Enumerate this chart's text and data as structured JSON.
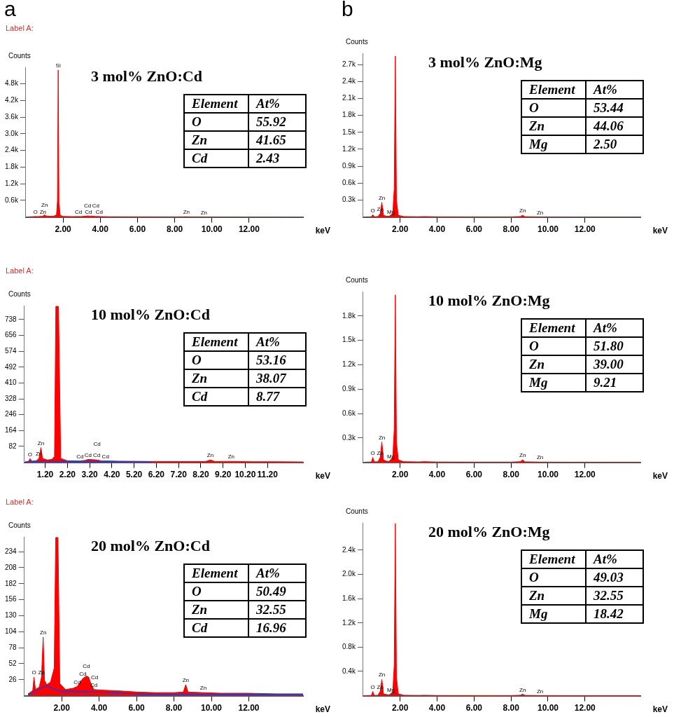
{
  "chart_data": [
    {
      "type": "area",
      "title": "3 mol% ZnO:Cd",
      "subtitle": "Label A:",
      "xlabel": "keV",
      "ylabel": "Counts",
      "xlim": [
        0,
        14.9
      ],
      "ylim": [
        0,
        5400
      ],
      "xticks": [
        {
          "value": 2,
          "label": "2.00"
        },
        {
          "value": 4,
          "label": "4.00"
        },
        {
          "value": 6,
          "label": "6.00"
        },
        {
          "value": 8,
          "label": "8.00"
        },
        {
          "value": 10,
          "label": "10.00"
        },
        {
          "value": 12,
          "label": "12.00"
        }
      ],
      "yticks": [
        {
          "value": 600,
          "label": "0.6k"
        },
        {
          "value": 1200,
          "label": "1.2k"
        },
        {
          "value": 1800,
          "label": "1.8k"
        },
        {
          "value": 2400,
          "label": "2.4k"
        },
        {
          "value": 3000,
          "label": "3.0k"
        },
        {
          "value": 3600,
          "label": "3.6k"
        },
        {
          "value": 4200,
          "label": "4.2k"
        },
        {
          "value": 4800,
          "label": "4.8k"
        }
      ],
      "series": [
        {
          "color": "#ff0000",
          "x": [
            0.1,
            0.3,
            0.45,
            0.52,
            0.6,
            0.8,
            0.92,
            1.01,
            1.08,
            1.3,
            1.5,
            1.65,
            1.7,
            1.74,
            1.78,
            1.85,
            2.0,
            2.5,
            2.83,
            3.0,
            3.13,
            3.2,
            3.32,
            3.45,
            3.53,
            3.72,
            4.5,
            6,
            8,
            8.5,
            8.63,
            8.75,
            9.57,
            10.5,
            12,
            13.5,
            14.9
          ],
          "values": [
            5,
            10,
            15,
            20,
            15,
            20,
            30,
            80,
            40,
            25,
            30,
            80,
            600,
            5300,
            500,
            60,
            20,
            15,
            18,
            15,
            30,
            25,
            40,
            30,
            35,
            20,
            10,
            8,
            6,
            8,
            10,
            6,
            5,
            4,
            3,
            3,
            2
          ]
        }
      ],
      "annotations": [
        "a",
        "Element",
        "At%",
        "O",
        "55.92",
        "Zn",
        "41.65",
        "Cd",
        "2.43",
        {
          "text": "O",
          "x": 0.52,
          "y": 20
        },
        {
          "text": "Zn",
          "x": 0.92,
          "y": 30
        },
        {
          "text": "Zn",
          "x": 1.01,
          "y": 80
        },
        {
          "text": "Si",
          "x": 1.74,
          "y": 5300
        },
        {
          "text": "Cd",
          "x": 2.83,
          "y": 18
        },
        {
          "text": "Cd",
          "x": 3.13,
          "y": 30
        },
        {
          "text": "Cd",
          "x": 3.32,
          "y": 40
        },
        {
          "text": "Cd",
          "x": 3.53,
          "y": 35
        },
        {
          "text": "Cd",
          "x": 3.72,
          "y": 20
        },
        {
          "text": "Zn",
          "x": 8.63,
          "y": 10
        },
        {
          "text": "Zn",
          "x": 9.57,
          "y": 5
        }
      ]
    },
    {
      "type": "area",
      "title": "3 mol% ZnO:Mg",
      "xlabel": "keV",
      "ylabel": "Counts",
      "xlim": [
        0,
        15
      ],
      "ylim": [
        0,
        2900
      ],
      "xticks": [
        {
          "value": 2,
          "label": "2.00"
        },
        {
          "value": 4,
          "label": "4.00"
        },
        {
          "value": 6,
          "label": "6.00"
        },
        {
          "value": 8,
          "label": "8.00"
        },
        {
          "value": 10,
          "label": "10.00"
        },
        {
          "value": 12,
          "label": "12.00"
        }
      ],
      "yticks": [
        {
          "value": 300,
          "label": "0.3k"
        },
        {
          "value": 600,
          "label": "0.6k"
        },
        {
          "value": 900,
          "label": "0.9k"
        },
        {
          "value": 1200,
          "label": "1.2k"
        },
        {
          "value": 1500,
          "label": "1.5k"
        },
        {
          "value": 1800,
          "label": "1.8k"
        },
        {
          "value": 2100,
          "label": "2.1k"
        },
        {
          "value": 2400,
          "label": "2.4k"
        },
        {
          "value": 2700,
          "label": "2.7k"
        }
      ],
      "series": [
        {
          "color": "#ff0000",
          "x": [
            0.1,
            0.3,
            0.45,
            0.52,
            0.6,
            0.8,
            0.92,
            1.01,
            1.1,
            1.25,
            1.4,
            1.6,
            1.68,
            1.74,
            1.8,
            1.9,
            2.2,
            3,
            3.3,
            4,
            6,
            8,
            8.5,
            8.63,
            8.75,
            9.57,
            11,
            13,
            15
          ],
          "values": [
            2,
            3,
            5,
            40,
            5,
            8,
            60,
            260,
            30,
            15,
            12,
            60,
            500,
            2850,
            300,
            30,
            8,
            5,
            8,
            4,
            3,
            3,
            8,
            30,
            6,
            3,
            2,
            2,
            2
          ]
        }
      ],
      "annotations": [
        "b",
        "Element",
        "At%",
        "O",
        "53.44",
        "Zn",
        "44.06",
        "Mg",
        "2.50",
        {
          "text": "O",
          "x": 0.52,
          "y": 40
        },
        {
          "text": "Zn",
          "x": 0.92,
          "y": 60
        },
        {
          "text": "Zn",
          "x": 1.01,
          "y": 260
        },
        {
          "text": "Mg",
          "x": 1.25,
          "y": 15
        },
        {
          "text": "Zn",
          "x": 8.63,
          "y": 30
        },
        {
          "text": "Zn",
          "x": 9.57,
          "y": 3
        }
      ]
    },
    {
      "type": "area",
      "title": "10 mol% ZnO:Cd",
      "subtitle": "Label A:",
      "xlabel": "keV",
      "ylabel": "Counts",
      "xlim": [
        0.26,
        12.8
      ],
      "ylim": [
        0,
        810
      ],
      "xticks": [
        {
          "value": 1.2,
          "label": "1.20"
        },
        {
          "value": 2.2,
          "label": "2.20"
        },
        {
          "value": 3.2,
          "label": "3.20"
        },
        {
          "value": 4.2,
          "label": "4.20"
        },
        {
          "value": 5.2,
          "label": "5.20"
        },
        {
          "value": 6.2,
          "label": "6.20"
        },
        {
          "value": 7.2,
          "label": "7.20"
        },
        {
          "value": 8.2,
          "label": "8.20"
        },
        {
          "value": 9.2,
          "label": "9.20"
        },
        {
          "value": 10.2,
          "label": "10.20"
        },
        {
          "value": 11.2,
          "label": "11.20"
        }
      ],
      "yticks": [
        82,
        164,
        246,
        328,
        410,
        492,
        574,
        656,
        738
      ],
      "series": [
        {
          "color": "#ff0000",
          "x": [
            0.3,
            0.45,
            0.52,
            0.6,
            0.8,
            0.92,
            1.01,
            1.08,
            1.3,
            1.5,
            1.62,
            1.68,
            1.74,
            1.8,
            1.9,
            2.2,
            2.77,
            3.0,
            3.13,
            3.32,
            3.53,
            3.72,
            4.5,
            5.5,
            6.5,
            7.5,
            8.4,
            8.63,
            8.85,
            9.57,
            10.5,
            11.5,
            12.8
          ],
          "values": [
            2,
            5,
            19,
            6,
            8,
            20,
            76,
            20,
            12,
            15,
            30,
            806,
            806,
            806,
            20,
            8,
            7,
            10,
            15,
            14,
            12,
            8,
            6,
            5,
            4,
            4,
            4,
            12,
            4,
            5,
            3,
            3,
            2
          ]
        },
        {
          "type": "line",
          "color": "#3333cc",
          "x": [
            0.3,
            0.8,
            1.2,
            1.8,
            2.5,
            4,
            6
          ],
          "values": [
            1,
            5,
            7,
            5,
            4,
            3,
            2
          ]
        }
      ],
      "annotations": [
        "Element",
        "At%",
        "O",
        "53.16",
        "Zn",
        "38.07",
        "Cd",
        "8.77",
        {
          "text": "O",
          "x": 0.52,
          "y": 19
        },
        {
          "text": "Zn",
          "x": 0.92,
          "y": 20
        },
        {
          "text": "Zn",
          "x": 1.01,
          "y": 76
        },
        {
          "text": "Cd",
          "x": 2.77,
          "y": 7
        },
        {
          "text": "Cd",
          "x": 3.13,
          "y": 15
        },
        {
          "text": "Cd",
          "x": 3.32,
          "y": 14
        },
        {
          "text": "Cd",
          "x": 3.53,
          "y": 12
        },
        {
          "text": "Cd",
          "x": 3.72,
          "y": 8
        },
        {
          "text": "Zn",
          "x": 8.63,
          "y": 12
        },
        {
          "text": "Zn",
          "x": 9.57,
          "y": 5
        }
      ]
    },
    {
      "type": "area",
      "title": "10 mol% ZnO:Mg",
      "xlabel": "keV",
      "ylabel": "Counts",
      "xlim": [
        0,
        15
      ],
      "ylim": [
        0,
        2100
      ],
      "xticks": [
        {
          "value": 2,
          "label": "2.00"
        },
        {
          "value": 4,
          "label": "4.00"
        },
        {
          "value": 6,
          "label": "6.00"
        },
        {
          "value": 8,
          "label": "8.00"
        },
        {
          "value": 10,
          "label": "10.00"
        },
        {
          "value": 12,
          "label": "12.00"
        }
      ],
      "yticks": [
        {
          "value": 300,
          "label": "0.3k"
        },
        {
          "value": 600,
          "label": "0.6k"
        },
        {
          "value": 900,
          "label": "0.9k"
        },
        {
          "value": 1200,
          "label": "1.2k"
        },
        {
          "value": 1500,
          "label": "1.5k"
        },
        {
          "value": 1800,
          "label": "1.8k"
        }
      ],
      "series": [
        {
          "color": "#ff0000",
          "x": [
            0.1,
            0.3,
            0.45,
            0.52,
            0.6,
            0.8,
            0.92,
            1.01,
            1.1,
            1.25,
            1.4,
            1.6,
            1.68,
            1.74,
            1.8,
            1.9,
            2.2,
            3,
            3.3,
            4,
            6,
            8,
            8.5,
            8.63,
            8.75,
            9.57,
            11,
            13,
            15
          ],
          "values": [
            2,
            3,
            5,
            60,
            5,
            8,
            60,
            250,
            30,
            15,
            12,
            60,
            400,
            2060,
            250,
            30,
            8,
            5,
            8,
            4,
            3,
            3,
            8,
            30,
            6,
            3,
            2,
            2,
            2
          ]
        }
      ],
      "annotations": [
        "Element",
        "At%",
        "O",
        "51.80",
        "Zn",
        "39.00",
        "Mg",
        "9.21",
        {
          "text": "O",
          "x": 0.52,
          "y": 60
        },
        {
          "text": "Zn",
          "x": 0.92,
          "y": 60
        },
        {
          "text": "Zn",
          "x": 1.01,
          "y": 250
        },
        {
          "text": "Mg",
          "x": 1.25,
          "y": 15
        },
        {
          "text": "Zn",
          "x": 8.63,
          "y": 30
        },
        {
          "text": "Zn",
          "x": 9.57,
          "y": 3
        }
      ]
    },
    {
      "type": "area",
      "title": "20 mol% ZnO:Cd",
      "subtitle": "Label A:",
      "xlabel": "keV",
      "ylabel": "Counts",
      "xlim": [
        0,
        14.9
      ],
      "ylim": [
        0,
        258
      ],
      "xticks": [
        {
          "value": 2,
          "label": "2.00"
        },
        {
          "value": 4,
          "label": "4.00"
        },
        {
          "value": 6,
          "label": "6.00"
        },
        {
          "value": 8,
          "label": "8.00"
        },
        {
          "value": 10,
          "label": "10.00"
        },
        {
          "value": 12,
          "label": "12.00"
        }
      ],
      "yticks": [
        26,
        52,
        78,
        104,
        130,
        156,
        182,
        208,
        234
      ],
      "series": [
        {
          "color": "#ff0000",
          "x": [
            0.2,
            0.35,
            0.45,
            0.52,
            0.6,
            0.8,
            0.92,
            1.01,
            1.08,
            1.2,
            1.4,
            1.6,
            1.68,
            1.74,
            1.8,
            1.9,
            2.2,
            2.6,
            2.83,
            3.13,
            3.32,
            3.45,
            3.53,
            3.72,
            4.2,
            5,
            6,
            7,
            8,
            8.5,
            8.63,
            8.75,
            9.57,
            10.5,
            12,
            13.5,
            14.9
          ],
          "values": [
            3,
            6,
            8,
            30,
            10,
            14,
            30,
            95,
            25,
            18,
            22,
            45,
            257,
            257,
            257,
            20,
            10,
            12,
            15,
            28,
            32,
            30,
            22,
            10,
            9,
            8,
            6,
            5,
            5,
            6,
            18,
            6,
            5,
            4,
            4,
            3,
            3
          ]
        },
        {
          "type": "line",
          "color": "#3333cc",
          "x": [
            0.2,
            0.6,
            1.0,
            1.2,
            1.5,
            2.0,
            3.0,
            4.0,
            6.0,
            9.0,
            14.9
          ],
          "values": [
            2,
            8,
            14,
            16,
            12,
            7,
            7,
            6,
            3,
            2,
            2
          ]
        }
      ],
      "annotations": [
        "Element",
        "At%",
        "O",
        "50.49",
        "Zn",
        "32.55",
        "Cd",
        "16.96",
        {
          "text": "Zn",
          "x": 1.01,
          "y": 95
        },
        {
          "text": "O",
          "x": 0.52,
          "y": 30
        },
        {
          "text": "Zn",
          "x": 0.92,
          "y": 30
        },
        {
          "text": "Cd",
          "x": 2.83,
          "y": 15
        },
        {
          "text": "Cd",
          "x": 3.13,
          "y": 28
        },
        {
          "text": "Cd",
          "x": 3.32,
          "y": 32
        },
        {
          "text": "Cd",
          "x": 3.53,
          "y": 22
        },
        {
          "text": "Cd",
          "x": 3.72,
          "y": 10
        },
        {
          "text": "Zn",
          "x": 8.63,
          "y": 18
        },
        {
          "text": "Zn",
          "x": 9.57,
          "y": 5
        }
      ]
    },
    {
      "type": "area",
      "title": "20 mol% ZnO:Mg",
      "xlabel": "keV",
      "ylabel": "Counts",
      "xlim": [
        0,
        15
      ],
      "ylim": [
        0,
        2850
      ],
      "xticks": [
        {
          "value": 2,
          "label": "2.00"
        },
        {
          "value": 4,
          "label": "4.00"
        },
        {
          "value": 6,
          "label": "6.00"
        },
        {
          "value": 8,
          "label": "8.00"
        },
        {
          "value": 10,
          "label": "10.00"
        },
        {
          "value": 12,
          "label": "12.00"
        }
      ],
      "yticks": [
        {
          "value": 400,
          "label": "0.4k"
        },
        {
          "value": 800,
          "label": "0.8k"
        },
        {
          "value": 1200,
          "label": "1.2k"
        },
        {
          "value": 1600,
          "label": "1.6k"
        },
        {
          "value": 2000,
          "label": "2.0k"
        },
        {
          "value": 2400,
          "label": "2.4k"
        }
      ],
      "series": [
        {
          "color": "#ff0000",
          "x": [
            0.1,
            0.3,
            0.45,
            0.52,
            0.6,
            0.8,
            0.92,
            1.01,
            1.1,
            1.25,
            1.4,
            1.6,
            1.68,
            1.74,
            1.8,
            1.9,
            2.2,
            3,
            3.3,
            4,
            6,
            8,
            8.5,
            8.63,
            8.75,
            9.57,
            11,
            13,
            15
          ],
          "values": [
            2,
            3,
            5,
            70,
            5,
            8,
            70,
            270,
            30,
            20,
            12,
            60,
            500,
            2840,
            300,
            30,
            8,
            5,
            8,
            4,
            3,
            3,
            8,
            25,
            6,
            3,
            2,
            2,
            2
          ]
        }
      ],
      "annotations": [
        "Element",
        "At%",
        "O",
        "49.03",
        "Zn",
        "32.55",
        "Mg",
        "18.42",
        {
          "text": "O",
          "x": 0.52,
          "y": 70
        },
        {
          "text": "Zn",
          "x": 0.92,
          "y": 70
        },
        {
          "text": "Zn",
          "x": 1.01,
          "y": 270
        },
        {
          "text": "Mg",
          "x": 1.25,
          "y": 20
        },
        {
          "text": "Zn",
          "x": 8.63,
          "y": 25
        },
        {
          "text": "Zn",
          "x": 9.57,
          "y": 3
        }
      ]
    }
  ]
}
